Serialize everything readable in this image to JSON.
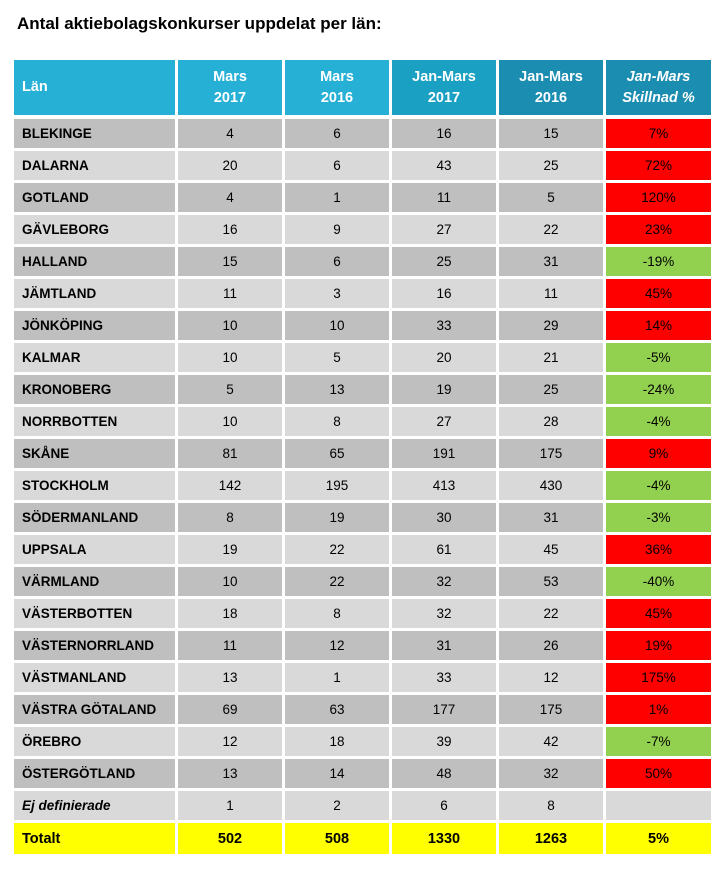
{
  "title": "Antal aktiebolagskonkurser uppdelat per län:",
  "columns": [
    "Län",
    "Mars\n2017",
    "Mars\n2016",
    "Jan-Mars\n2017",
    "Jan-Mars\n2016",
    "Jan-Mars\nSkillnad %"
  ],
  "columns_split": [
    [
      "Län"
    ],
    [
      "Mars",
      "2017"
    ],
    [
      "Mars",
      "2016"
    ],
    [
      "Jan-Mars",
      "2017"
    ],
    [
      "Jan-Mars",
      "2016"
    ],
    [
      "Jan-Mars",
      "Skillnad %"
    ]
  ],
  "rows": [
    {
      "lan": "BLEKINGE",
      "m17": "4",
      "m16": "6",
      "jm17": "16",
      "jm16": "15",
      "diff": "7%",
      "status": "red"
    },
    {
      "lan": "DALARNA",
      "m17": "20",
      "m16": "6",
      "jm17": "43",
      "jm16": "25",
      "diff": "72%",
      "status": "red"
    },
    {
      "lan": "GOTLAND",
      "m17": "4",
      "m16": "1",
      "jm17": "11",
      "jm16": "5",
      "diff": "120%",
      "status": "red"
    },
    {
      "lan": "GÄVLEBORG",
      "m17": "16",
      "m16": "9",
      "jm17": "27",
      "jm16": "22",
      "diff": "23%",
      "status": "red"
    },
    {
      "lan": "HALLAND",
      "m17": "15",
      "m16": "6",
      "jm17": "25",
      "jm16": "31",
      "diff": "-19%",
      "status": "green"
    },
    {
      "lan": "JÄMTLAND",
      "m17": "11",
      "m16": "3",
      "jm17": "16",
      "jm16": "11",
      "diff": "45%",
      "status": "red"
    },
    {
      "lan": "JÖNKÖPING",
      "m17": "10",
      "m16": "10",
      "jm17": "33",
      "jm16": "29",
      "diff": "14%",
      "status": "red"
    },
    {
      "lan": "KALMAR",
      "m17": "10",
      "m16": "5",
      "jm17": "20",
      "jm16": "21",
      "diff": "-5%",
      "status": "green"
    },
    {
      "lan": "KRONOBERG",
      "m17": "5",
      "m16": "13",
      "jm17": "19",
      "jm16": "25",
      "diff": "-24%",
      "status": "green"
    },
    {
      "lan": "NORRBOTTEN",
      "m17": "10",
      "m16": "8",
      "jm17": "27",
      "jm16": "28",
      "diff": "-4%",
      "status": "green"
    },
    {
      "lan": "SKÅNE",
      "m17": "81",
      "m16": "65",
      "jm17": "191",
      "jm16": "175",
      "diff": "9%",
      "status": "red"
    },
    {
      "lan": "STOCKHOLM",
      "m17": "142",
      "m16": "195",
      "jm17": "413",
      "jm16": "430",
      "diff": "-4%",
      "status": "green"
    },
    {
      "lan": "SÖDERMANLAND",
      "m17": "8",
      "m16": "19",
      "jm17": "30",
      "jm16": "31",
      "diff": "-3%",
      "status": "green"
    },
    {
      "lan": "UPPSALA",
      "m17": "19",
      "m16": "22",
      "jm17": "61",
      "jm16": "45",
      "diff": "36%",
      "status": "red"
    },
    {
      "lan": "VÄRMLAND",
      "m17": "10",
      "m16": "22",
      "jm17": "32",
      "jm16": "53",
      "diff": "-40%",
      "status": "green"
    },
    {
      "lan": "VÄSTERBOTTEN",
      "m17": "18",
      "m16": "8",
      "jm17": "32",
      "jm16": "22",
      "diff": "45%",
      "status": "red"
    },
    {
      "lan": "VÄSTERNORRLAND",
      "m17": "11",
      "m16": "12",
      "jm17": "31",
      "jm16": "26",
      "diff": "19%",
      "status": "red"
    },
    {
      "lan": "VÄSTMANLAND",
      "m17": "13",
      "m16": "1",
      "jm17": "33",
      "jm16": "12",
      "diff": "175%",
      "status": "red"
    },
    {
      "lan": "VÄSTRA GÖTALAND",
      "m17": "69",
      "m16": "63",
      "jm17": "177",
      "jm16": "175",
      "diff": "1%",
      "status": "red"
    },
    {
      "lan": "ÖREBRO",
      "m17": "12",
      "m16": "18",
      "jm17": "39",
      "jm16": "42",
      "diff": "-7%",
      "status": "green"
    },
    {
      "lan": "ÖSTERGÖTLAND",
      "m17": "13",
      "m16": "14",
      "jm17": "48",
      "jm16": "32",
      "diff": "50%",
      "status": "red"
    },
    {
      "lan": "Ej definierade",
      "m17": "1",
      "m16": "2",
      "jm17": "6",
      "jm16": "8",
      "diff": "",
      "status": "none"
    }
  ],
  "total": {
    "lan": "Totalt",
    "m17": "502",
    "m16": "508",
    "jm17": "1330",
    "jm16": "1263",
    "diff": "5%"
  },
  "colors": {
    "header_light": "#26b0d6",
    "header_mid": "#1aa0c2",
    "header_dark": "#1b8db0",
    "row_dark": "#bfbfbf",
    "row_light": "#d9d9d9",
    "increase": "#ff0000",
    "decrease": "#92d050",
    "total": "#ffff00"
  }
}
